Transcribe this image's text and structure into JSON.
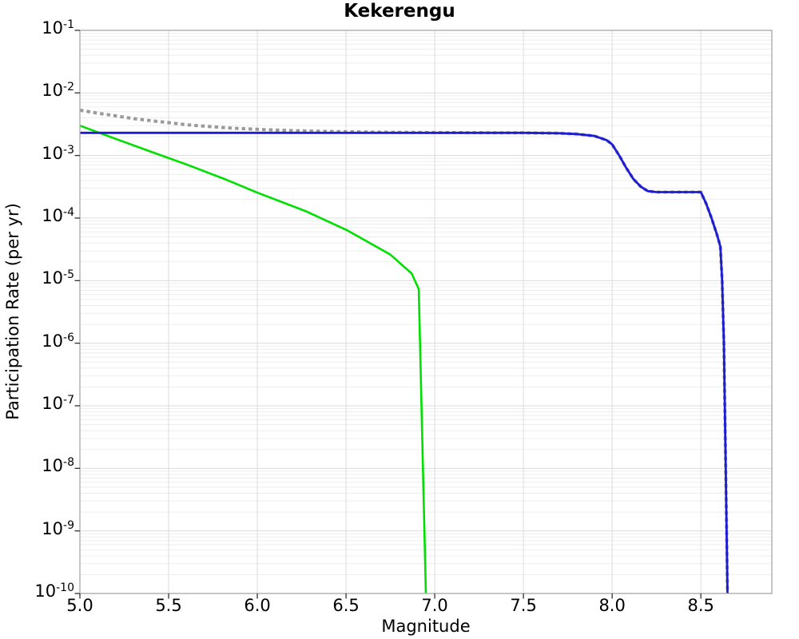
{
  "chart_data": {
    "type": "line",
    "title": "Kekerengu",
    "xlabel": "Magnitude",
    "ylabel": "Participation Rate (per yr)",
    "xlim": [
      5.0,
      8.9
    ],
    "ylim": [
      1e-10,
      0.1
    ],
    "x_ticks": [
      {
        "label": "5.0",
        "value": 5.0
      },
      {
        "label": "5.5",
        "value": 5.5
      },
      {
        "label": "6.0",
        "value": 6.0
      },
      {
        "label": "6.5",
        "value": 6.5
      },
      {
        "label": "7.0",
        "value": 7.0
      },
      {
        "label": "7.5",
        "value": 7.5
      },
      {
        "label": "8.0",
        "value": 8.0
      },
      {
        "label": "8.5",
        "value": 8.5
      }
    ],
    "y_ticks": [
      {
        "base": "10",
        "exp": "-1",
        "value": 0.1
      },
      {
        "base": "10",
        "exp": "-2",
        "value": 0.01
      },
      {
        "base": "10",
        "exp": "-3",
        "value": 0.001
      },
      {
        "base": "10",
        "exp": "-4",
        "value": 0.0001
      },
      {
        "base": "10",
        "exp": "-5",
        "value": 1e-05
      },
      {
        "base": "10",
        "exp": "-6",
        "value": 1e-06
      },
      {
        "base": "10",
        "exp": "-7",
        "value": 1e-07
      },
      {
        "base": "10",
        "exp": "-8",
        "value": 1e-08
      },
      {
        "base": "10",
        "exp": "-9",
        "value": 1e-09
      },
      {
        "base": "10",
        "exp": "-10",
        "value": 1e-10
      }
    ],
    "grid": {
      "show": true,
      "minor_log_horizontal": true,
      "vertical_every": 0.5
    },
    "legend_position": "none",
    "colors": {
      "blue_line": "#1c1cd6",
      "green_line": "#00e000",
      "gray_dotted": "#9a9a9a",
      "grid_major": "#dcdcdc",
      "grid_minor": "#ededed",
      "border": "#a8a8a8",
      "tick": "#333333"
    },
    "series": [
      {
        "name": "gray-dotted-total-rate",
        "color": "#9a9a9a",
        "style": "dotted",
        "width": 4,
        "dash": [
          4.5,
          4
        ],
        "points": [
          [
            5.0,
            0.0053
          ],
          [
            5.1,
            0.00475
          ],
          [
            5.2,
            0.0043
          ],
          [
            5.3,
            0.0039
          ],
          [
            5.4,
            0.0036
          ],
          [
            5.5,
            0.00335
          ],
          [
            5.6,
            0.0031
          ],
          [
            5.7,
            0.00295
          ],
          [
            5.8,
            0.0028
          ],
          [
            5.9,
            0.0027
          ],
          [
            6.0,
            0.00262
          ],
          [
            6.1,
            0.00255
          ],
          [
            6.2,
            0.0025
          ],
          [
            6.35,
            0.00244
          ],
          [
            6.5,
            0.0024
          ],
          [
            6.7,
            0.00236
          ],
          [
            7.0,
            0.00233
          ],
          [
            7.3,
            0.00231
          ],
          [
            7.5,
            0.0023
          ],
          [
            7.7,
            0.00227
          ],
          [
            7.8,
            0.0022
          ],
          [
            7.9,
            0.00205
          ],
          [
            7.97,
            0.00175
          ],
          [
            8.0,
            0.0015
          ],
          [
            8.04,
            0.001
          ],
          [
            8.08,
            0.00063
          ],
          [
            8.12,
            0.00042
          ],
          [
            8.16,
            0.00032
          ],
          [
            8.2,
            0.00027
          ],
          [
            8.25,
            0.00026
          ],
          [
            8.5,
            0.00026
          ],
          [
            8.53,
            0.00017
          ],
          [
            8.56,
            0.0001
          ],
          [
            8.59,
            5.5e-05
          ],
          [
            8.61,
            3.5e-05
          ],
          [
            8.62,
            1e-05
          ],
          [
            8.63,
            1e-06
          ],
          [
            8.64,
            1e-08
          ],
          [
            8.65,
            1e-10
          ]
        ]
      },
      {
        "name": "green-solid-gr-rate",
        "color": "#00e000",
        "style": "solid",
        "width": 2.6,
        "dash": null,
        "points": [
          [
            5.0,
            0.003
          ],
          [
            5.2,
            0.00185
          ],
          [
            5.4,
            0.00115
          ],
          [
            5.6,
            0.00072
          ],
          [
            5.83,
            0.000405
          ],
          [
            6.0,
            0.000255
          ],
          [
            6.27,
            0.00013
          ],
          [
            6.51,
            6.3e-05
          ],
          [
            6.75,
            2.6e-05
          ],
          [
            6.87,
            1.3e-05
          ],
          [
            6.91,
            7.3e-06
          ],
          [
            6.95,
            1e-10
          ]
        ]
      },
      {
        "name": "blue-solid-rate",
        "color": "#1c1cd6",
        "style": "solid",
        "width": 2.8,
        "dash": null,
        "points": [
          [
            5.0,
            0.0023
          ],
          [
            7.5,
            0.0023
          ],
          [
            7.7,
            0.00227
          ],
          [
            7.8,
            0.0022
          ],
          [
            7.9,
            0.00205
          ],
          [
            7.97,
            0.00175
          ],
          [
            8.0,
            0.0015
          ],
          [
            8.04,
            0.001
          ],
          [
            8.08,
            0.00063
          ],
          [
            8.12,
            0.00042
          ],
          [
            8.16,
            0.00032
          ],
          [
            8.2,
            0.00027
          ],
          [
            8.25,
            0.00026
          ],
          [
            8.5,
            0.00026
          ],
          [
            8.53,
            0.00017
          ],
          [
            8.56,
            0.0001
          ],
          [
            8.59,
            5.5e-05
          ],
          [
            8.61,
            3.5e-05
          ],
          [
            8.62,
            1e-05
          ],
          [
            8.63,
            1e-06
          ],
          [
            8.64,
            1e-08
          ],
          [
            8.65,
            1e-10
          ]
        ]
      }
    ]
  }
}
